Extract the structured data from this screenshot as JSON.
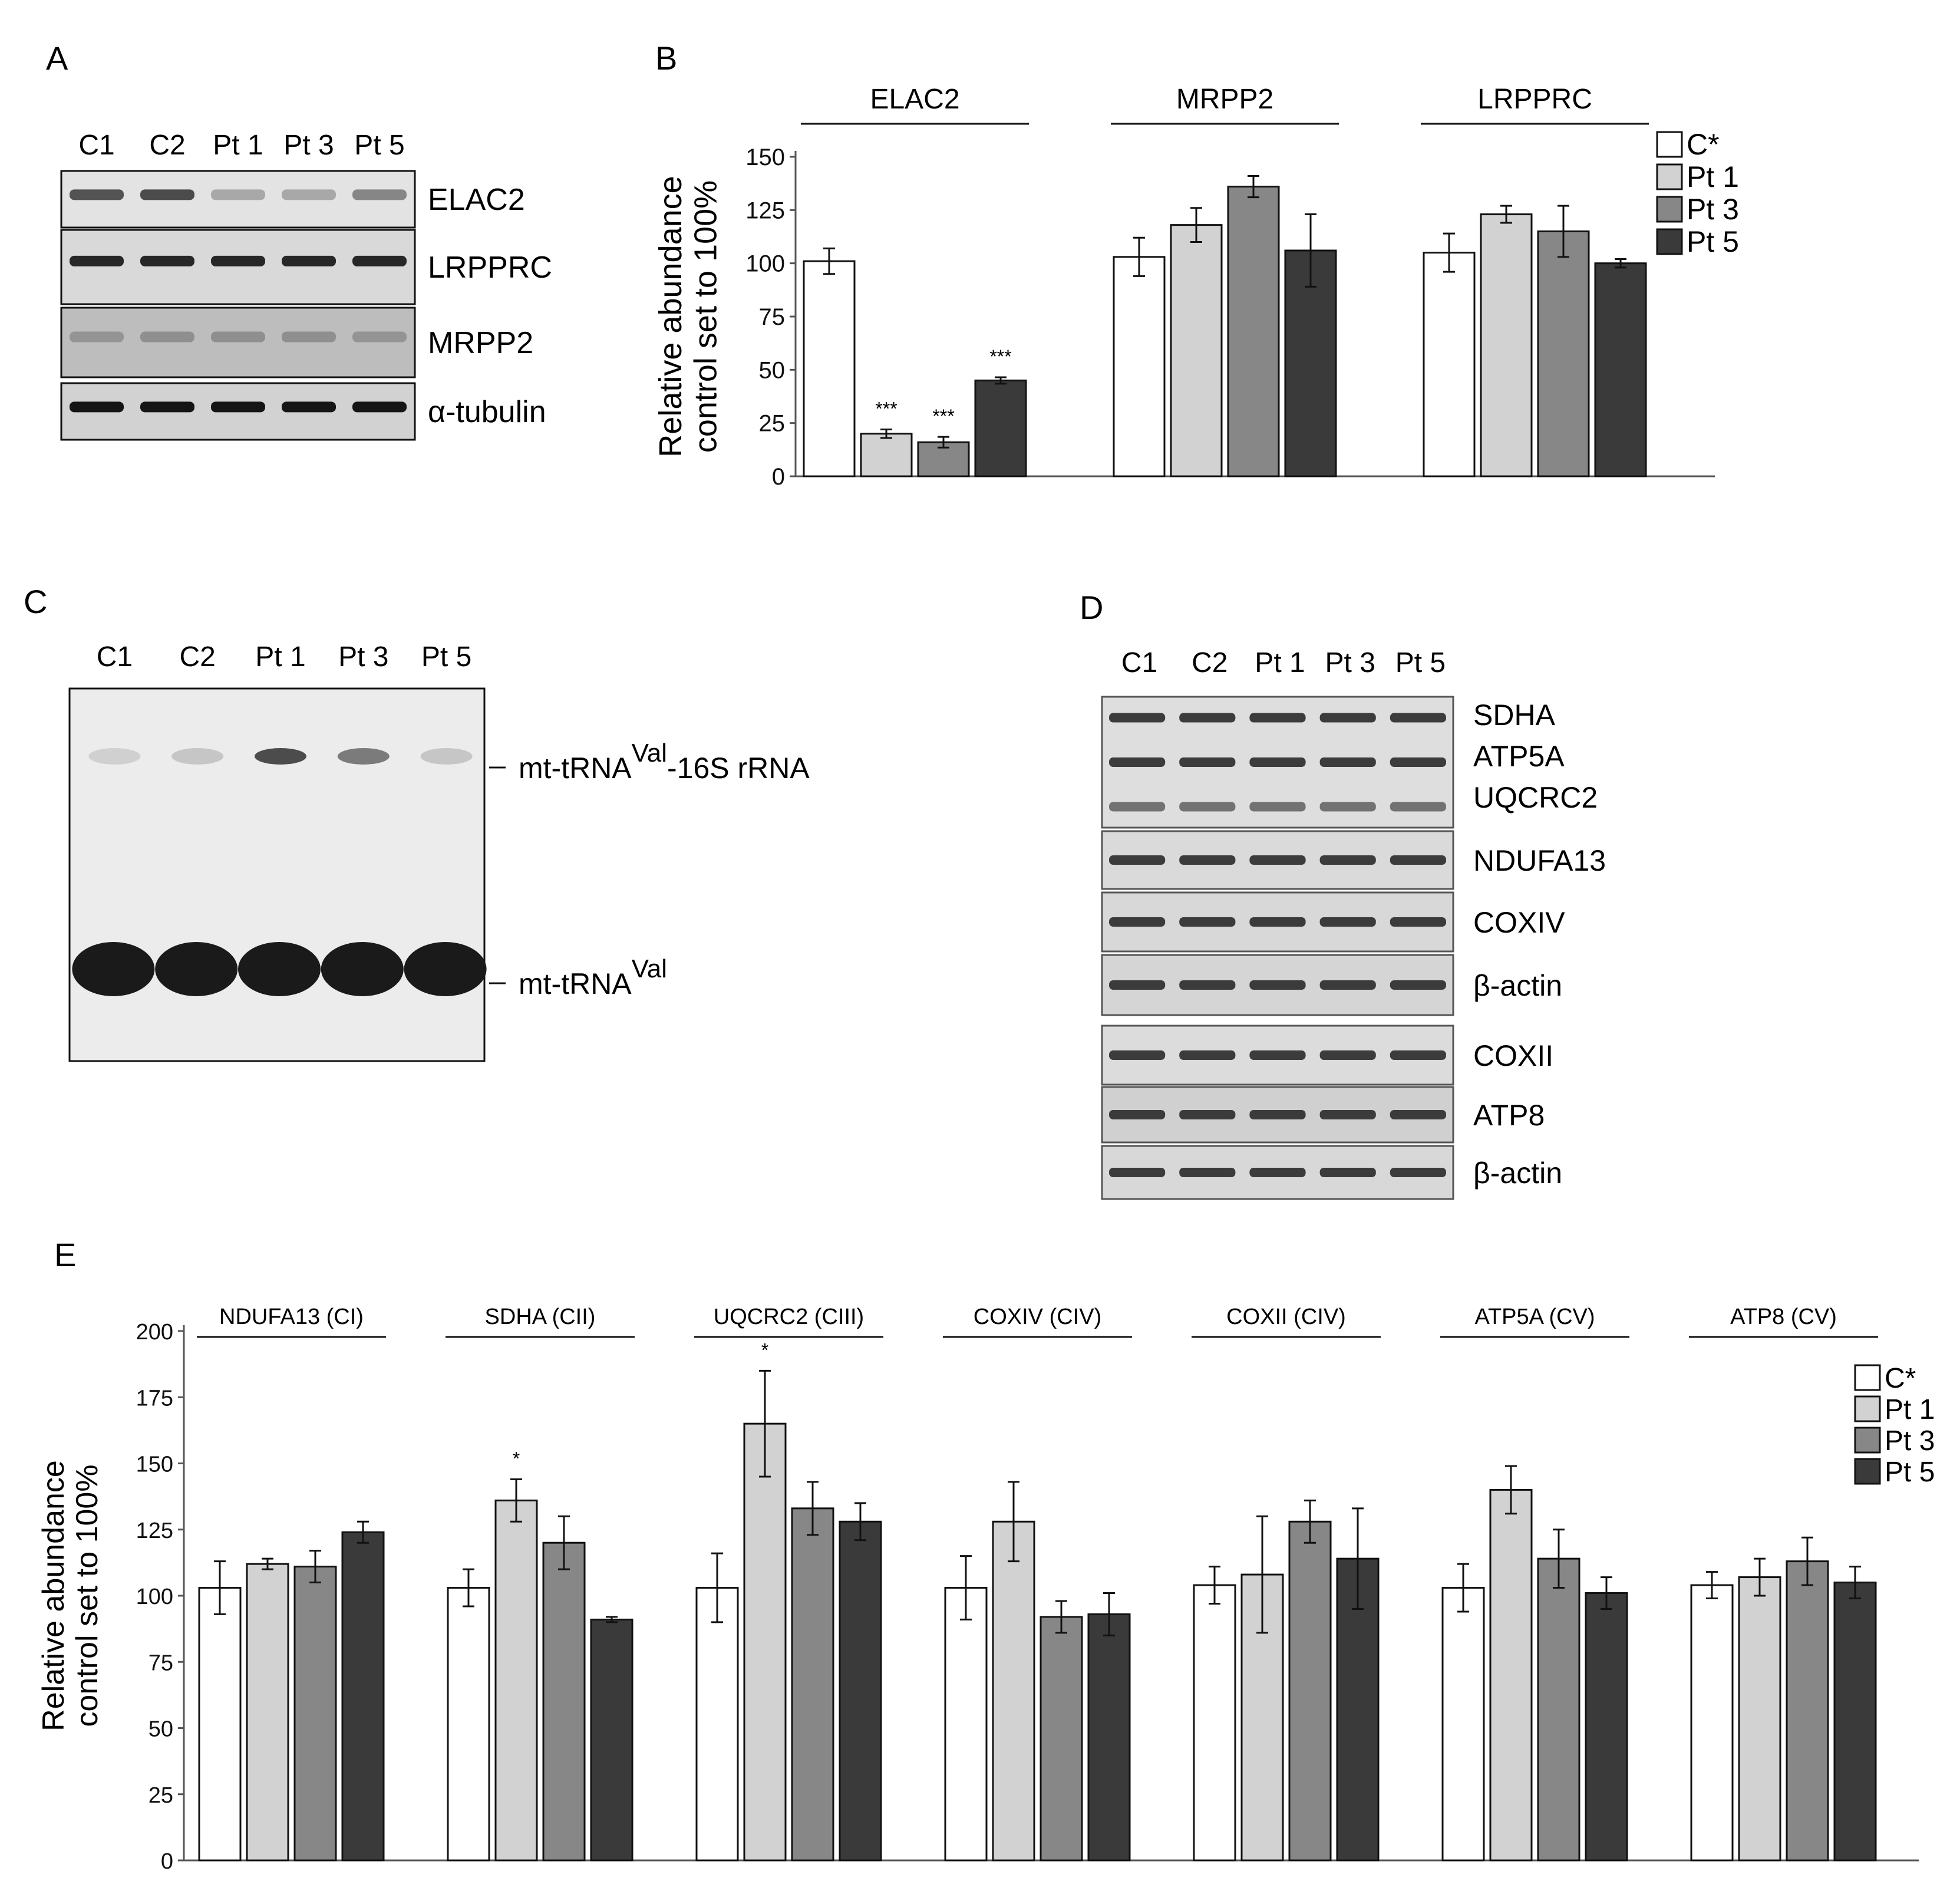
{
  "panels": {
    "A": {
      "label": "A",
      "lanes": [
        "C1",
        "C2",
        "Pt 1",
        "Pt 3",
        "Pt 5"
      ],
      "blots": [
        {
          "name": "ELAC2",
          "bg": "#e3e3e3",
          "band": "#3a3a3a",
          "intensity": [
            0.85,
            0.9,
            0.35,
            0.35,
            0.55
          ]
        },
        {
          "name": "LRPPRC",
          "bg": "#d9d9d9",
          "band": "#1e1e1e",
          "intensity": [
            0.95,
            0.95,
            0.95,
            0.95,
            0.95
          ]
        },
        {
          "name": "MRPP2",
          "bg": "#bdbdbd",
          "band": "#6a6a6a",
          "intensity": [
            0.5,
            0.55,
            0.55,
            0.55,
            0.5
          ]
        },
        {
          "name": "α-tubulin",
          "bg": "#d2d2d2",
          "band": "#151515",
          "intensity": [
            1,
            1,
            1,
            1,
            1
          ]
        }
      ]
    },
    "C": {
      "label": "C",
      "lanes": [
        "C1",
        "C2",
        "Pt 1",
        "Pt 3",
        "Pt 5"
      ],
      "upper_band_label": "mt-tRNA",
      "upper_band_superscript": "Val",
      "upper_band_suffix": "-16S rRNA",
      "lower_band_label": "mt-tRNA",
      "lower_band_superscript": "Val",
      "upper_intensity": [
        0.15,
        0.2,
        0.85,
        0.6,
        0.2
      ]
    },
    "D": {
      "label": "D",
      "lanes": [
        "C1",
        "C2",
        "Pt 1",
        "Pt 3",
        "Pt 5"
      ],
      "blot_groups": [
        {
          "labels": [
            "SDHA",
            "ATP5A",
            "UQCRC2"
          ],
          "bg": "#dedede"
        },
        {
          "labels": [
            "NDUFA13"
          ],
          "bg": "#dadada"
        },
        {
          "labels": [
            "COXIV"
          ],
          "bg": "#d8d8d8"
        },
        {
          "labels": [
            "β-actin"
          ],
          "bg": "#d5d5d5"
        },
        {
          "labels": [
            "COXII"
          ],
          "bg": "#dcdcdc"
        },
        {
          "labels": [
            "ATP8"
          ],
          "bg": "#d0d0d0"
        },
        {
          "labels": [
            "β-actin"
          ],
          "bg": "#d8d8d8"
        }
      ]
    }
  },
  "legend": {
    "entries": [
      {
        "name": "C*",
        "color": "#ffffff"
      },
      {
        "name": "Pt 1",
        "color": "#d2d2d2"
      },
      {
        "name": "Pt 3",
        "color": "#878787"
      },
      {
        "name": "Pt 5",
        "color": "#3a3a3a"
      }
    ]
  },
  "chart_data": [
    {
      "panel": "B",
      "type": "bar",
      "ylabel": "Relative abundance",
      "ylabel2": "control set to 100%",
      "ylim": [
        0,
        150
      ],
      "yticks": [
        0,
        25,
        50,
        75,
        100,
        125,
        150
      ],
      "series_names": [
        "C*",
        "Pt 1",
        "Pt 3",
        "Pt 5"
      ],
      "groups": [
        {
          "name": "ELAC2",
          "values": [
            101,
            20,
            16,
            45
          ],
          "errors": [
            6,
            2,
            2.5,
            1.5
          ],
          "sig": [
            "",
            "***",
            "***",
            "***"
          ]
        },
        {
          "name": "MRPP2",
          "values": [
            103,
            118,
            136,
            106
          ],
          "errors": [
            9,
            8,
            5,
            17
          ],
          "sig": [
            "",
            "",
            "",
            ""
          ]
        },
        {
          "name": "LRPPRC",
          "values": [
            105,
            123,
            115,
            100
          ],
          "errors": [
            9,
            4,
            12,
            2
          ],
          "sig": [
            "",
            "",
            "",
            ""
          ]
        }
      ]
    },
    {
      "panel": "E",
      "type": "bar",
      "ylabel": "Relative abundance",
      "ylabel2": "control set to 100%",
      "ylim": [
        0,
        200
      ],
      "yticks": [
        0,
        25,
        50,
        75,
        100,
        125,
        150,
        175,
        200
      ],
      "series_names": [
        "C*",
        "Pt 1",
        "Pt 3",
        "Pt 5"
      ],
      "groups": [
        {
          "name": "NDUFA13 (CI)",
          "values": [
            103,
            112,
            111,
            124
          ],
          "errors": [
            10,
            2,
            6,
            4
          ],
          "sig": [
            "",
            "",
            "",
            ""
          ]
        },
        {
          "name": "SDHA (CII)",
          "values": [
            103,
            136,
            120,
            91
          ],
          "errors": [
            7,
            8,
            10,
            1
          ],
          "sig": [
            "",
            "*",
            "",
            ""
          ]
        },
        {
          "name": "UQCRC2 (CIII)",
          "values": [
            103,
            165,
            133,
            128
          ],
          "errors": [
            13,
            20,
            10,
            7
          ],
          "sig": [
            "",
            "*",
            "",
            ""
          ]
        },
        {
          "name": "COXIV (CIV)",
          "values": [
            103,
            128,
            92,
            93
          ],
          "errors": [
            12,
            15,
            6,
            8
          ],
          "sig": [
            "",
            "",
            "",
            ""
          ]
        },
        {
          "name": "COXII (CIV)",
          "values": [
            104,
            108,
            128,
            114
          ],
          "errors": [
            7,
            22,
            8,
            19
          ],
          "sig": [
            "",
            "",
            "",
            ""
          ]
        },
        {
          "name": "ATP5A (CV)",
          "values": [
            103,
            140,
            114,
            101
          ],
          "errors": [
            9,
            9,
            11,
            6
          ],
          "sig": [
            "",
            "",
            "",
            ""
          ]
        },
        {
          "name": "ATP8 (CV)",
          "values": [
            104,
            107,
            113,
            105
          ],
          "errors": [
            5,
            7,
            9,
            6
          ],
          "sig": [
            "",
            "",
            "",
            ""
          ]
        }
      ]
    }
  ]
}
